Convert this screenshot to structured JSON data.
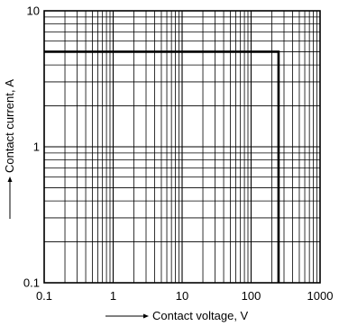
{
  "chart_data": {
    "type": "line",
    "title": "",
    "xlabel": "Contact voltage, V",
    "ylabel": "Contact current, A",
    "xscale": "log",
    "yscale": "log",
    "xlim": [
      0.1,
      1000
    ],
    "ylim": [
      0.1,
      10
    ],
    "grid": true,
    "x_ticks": [
      "0.1",
      "1",
      "10",
      "100",
      "1000"
    ],
    "y_ticks": [
      "0.1",
      "1",
      "10"
    ],
    "series": [
      {
        "x": [
          0.1,
          250,
          250
        ],
        "y": [
          5,
          5,
          0.1
        ]
      }
    ]
  }
}
